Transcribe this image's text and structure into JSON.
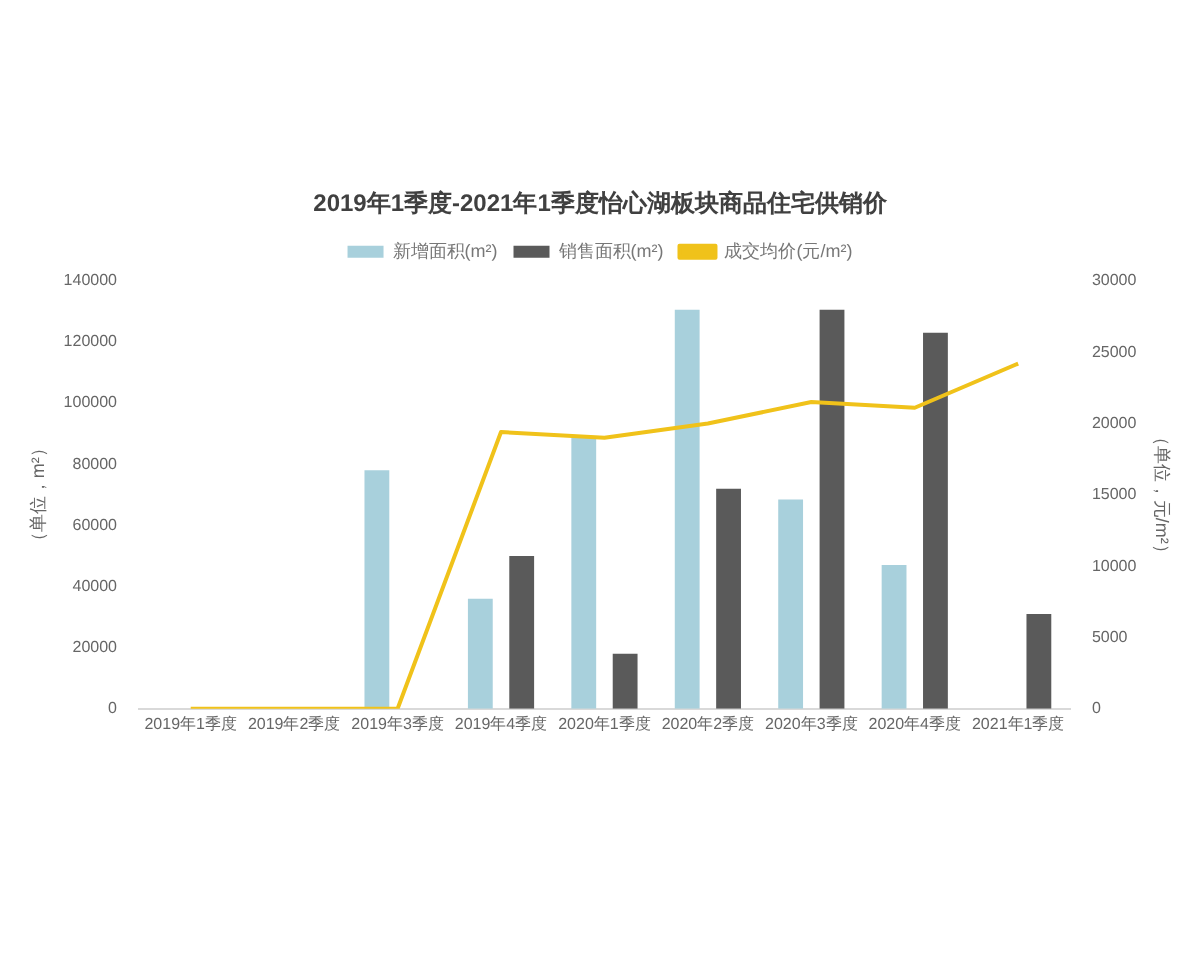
{
  "chart_data": {
    "type": "bar",
    "title": "2019年1季度-2021年1季度怡心湖板块商品住宅供销价",
    "categories": [
      "2019年1季度",
      "2019年2季度",
      "2019年3季度",
      "2019年4季度",
      "2020年1季度",
      "2020年2季度",
      "2020年3季度",
      "2020年4季度",
      "2021年1季度"
    ],
    "series": [
      {
        "name": "新增面积(m²)",
        "color": "#a8d0dc",
        "values": [
          0,
          0,
          78000,
          36000,
          89000,
          130500,
          68500,
          47000,
          null
        ]
      },
      {
        "name": "销售面积(m²)",
        "color": "#5a5a5a",
        "values": [
          0,
          0,
          0,
          50000,
          18000,
          72000,
          130500,
          123000,
          31000
        ]
      },
      {
        "name": "成交均价(元/m²)",
        "type": "line",
        "axis": "y2",
        "color": "#f0c21a",
        "values": [
          0,
          0,
          0,
          19400,
          19000,
          20000,
          21500,
          21100,
          24200
        ]
      }
    ],
    "ylabel": "（单位，m²）",
    "y2label": "（单位，元/m²）",
    "ylim": [
      0,
      140000
    ],
    "yticks": [
      0,
      20000,
      40000,
      60000,
      80000,
      100000,
      120000,
      140000
    ],
    "y2lim": [
      0,
      30000
    ],
    "y2ticks": [
      0,
      5000,
      10000,
      15000,
      20000,
      25000,
      30000
    ],
    "legend": "top",
    "marker": "none"
  }
}
